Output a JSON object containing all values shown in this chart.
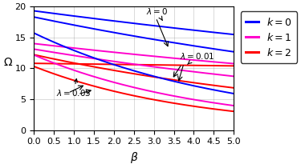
{
  "beta_range": [
    0,
    5
  ],
  "ylim": [
    0,
    20
  ],
  "xlim": [
    0,
    5
  ],
  "xlabel": "$\\beta$",
  "ylabel": "$\\Omega$",
  "colors": {
    "k0": "#0000FF",
    "k1": "#FF00CC",
    "k2": "#FF0000"
  },
  "lw": 1.4,
  "curves": {
    "lam0": {
      "k0": {
        "A": 19.0,
        "B": 0.045,
        "C": 0.3
      },
      "k1": {
        "A": 13.5,
        "B": 0.055,
        "C": 0.5
      },
      "k2": {
        "A": 10.5,
        "B": 0.008,
        "C": 0.3
      }
    },
    "lam001": {
      "k0": {
        "A": 18.0,
        "B": 0.075,
        "C": 0.3
      },
      "k1": {
        "A": 12.7,
        "B": 0.085,
        "C": 0.4
      },
      "k2": {
        "A": 11.9,
        "B": 0.12,
        "C": 0.3
      }
    },
    "lam005": {
      "k0": {
        "A": 15.5,
        "B": 0.2,
        "C": 0.2
      },
      "k1": {
        "A": 12.0,
        "B": 0.23,
        "C": 0.15
      },
      "k2": {
        "A": 10.2,
        "B": 0.25,
        "C": 0.1
      }
    }
  },
  "background_color": "#ffffff",
  "grid": true,
  "tick_fontsize": 8,
  "label_fontsize": 10,
  "legend_fontsize": 9
}
